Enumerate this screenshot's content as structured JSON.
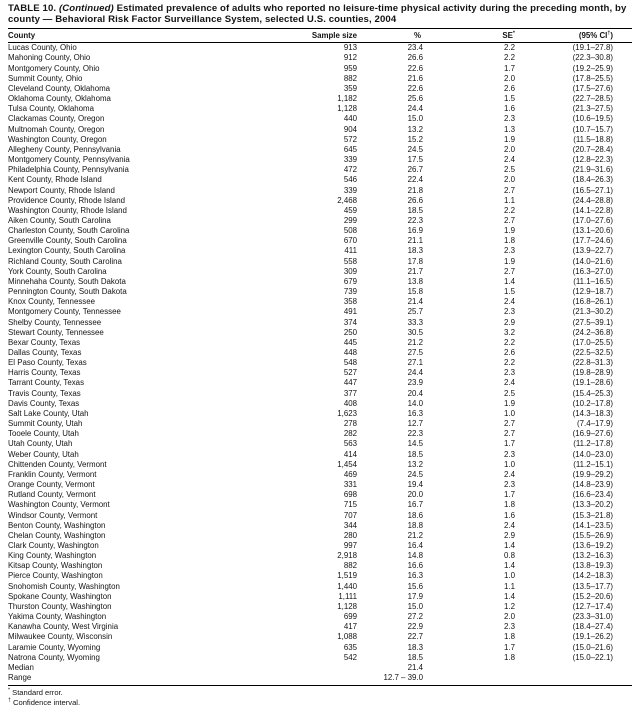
{
  "title": {
    "prefix": "TABLE 10. ",
    "continued": "(Continued)",
    "rest": " Estimated prevalence of adults who reported no leisure-time physical activity during the preceding month, by county — Behavioral Risk Factor Surveillance System, selected U.S. counties, 2004"
  },
  "table": {
    "headers": [
      {
        "key": "county",
        "label": "County"
      },
      {
        "key": "sample-size",
        "label": "Sample size"
      },
      {
        "key": "pct",
        "label": "%"
      },
      {
        "key": "se",
        "label": "SE",
        "sup": "*"
      },
      {
        "key": "ci",
        "label": "(95% CI",
        "sup": "†",
        "suffix": ")"
      }
    ],
    "rows": [
      [
        "Lucas County, Ohio",
        "913",
        "23.4",
        "2.2",
        "(19.1–27.8)"
      ],
      [
        "Mahoning County, Ohio",
        "912",
        "26.6",
        "2.2",
        "(22.3–30.8)"
      ],
      [
        "Montgomery County, Ohio",
        "959",
        "22.6",
        "1.7",
        "(19.2–25.9)"
      ],
      [
        "Summit County, Ohio",
        "882",
        "21.6",
        "2.0",
        "(17.8–25.5)"
      ],
      [
        "Cleveland County, Oklahoma",
        "359",
        "22.6",
        "2.6",
        "(17.5–27.6)"
      ],
      [
        "Oklahoma County, Oklahoma",
        "1,182",
        "25.6",
        "1.5",
        "(22.7–28.5)"
      ],
      [
        "Tulsa County, Oklahoma",
        "1,128",
        "24.4",
        "1.6",
        "(21.3–27.5)"
      ],
      [
        "Clackamas County, Oregon",
        "440",
        "15.0",
        "2.3",
        "(10.6–19.5)"
      ],
      [
        "Multnomah County, Oregon",
        "904",
        "13.2",
        "1.3",
        "(10.7–15.7)"
      ],
      [
        "Washington County, Oregon",
        "572",
        "15.2",
        "1.9",
        "(11.5–18.8)"
      ],
      [
        "Allegheny County, Pennsylvania",
        "645",
        "24.5",
        "2.0",
        "(20.7–28.4)"
      ],
      [
        "Montgomery County, Pennsylvania",
        "339",
        "17.5",
        "2.4",
        "(12.8–22.3)"
      ],
      [
        "Philadelphia County, Pennsylvania",
        "472",
        "26.7",
        "2.5",
        "(21.9–31.6)"
      ],
      [
        "Kent County, Rhode Island",
        "546",
        "22.4",
        "2.0",
        "(18.4–26.3)"
      ],
      [
        "Newport County, Rhode Island",
        "339",
        "21.8",
        "2.7",
        "(16.5–27.1)"
      ],
      [
        "Providence County, Rhode Island",
        "2,468",
        "26.6",
        "1.1",
        "(24.4–28.8)"
      ],
      [
        "Washington County, Rhode Island",
        "459",
        "18.5",
        "2.2",
        "(14.1–22.8)"
      ],
      [
        "Aiken County, South Carolina",
        "299",
        "22.3",
        "2.7",
        "(17.0–27.6)"
      ],
      [
        "Charleston County, South Carolina",
        "508",
        "16.9",
        "1.9",
        "(13.1–20.6)"
      ],
      [
        "Greenville County, South Carolina",
        "670",
        "21.1",
        "1.8",
        "(17.7–24.6)"
      ],
      [
        "Lexington County, South Carolina",
        "411",
        "18.3",
        "2.3",
        "(13.9–22.7)"
      ],
      [
        "Richland County, South Carolina",
        "558",
        "17.8",
        "1.9",
        "(14.0–21.6)"
      ],
      [
        "York County, South Carolina",
        "309",
        "21.7",
        "2.7",
        "(16.3–27.0)"
      ],
      [
        "Minnehaha County, South Dakota",
        "679",
        "13.8",
        "1.4",
        "(11.1–16.5)"
      ],
      [
        "Pennington County, South Dakota",
        "739",
        "15.8",
        "1.5",
        "(12.9–18.7)"
      ],
      [
        "Knox County, Tennessee",
        "358",
        "21.4",
        "2.4",
        "(16.8–26.1)"
      ],
      [
        "Montgomery County, Tennessee",
        "491",
        "25.7",
        "2.3",
        "(21.3–30.2)"
      ],
      [
        "Shelby County, Tennessee",
        "374",
        "33.3",
        "2.9",
        "(27.5–39.1)"
      ],
      [
        "Stewart County, Tennessee",
        "250",
        "30.5",
        "3.2",
        "(24.2–36.8)"
      ],
      [
        "Bexar County, Texas",
        "445",
        "21.2",
        "2.2",
        "(17.0–25.5)"
      ],
      [
        "Dallas County, Texas",
        "448",
        "27.5",
        "2.6",
        "(22.5–32.5)"
      ],
      [
        "El Paso County, Texas",
        "548",
        "27.1",
        "2.2",
        "(22.8–31.3)"
      ],
      [
        "Harris County, Texas",
        "527",
        "24.4",
        "2.3",
        "(19.8–28.9)"
      ],
      [
        "Tarrant County, Texas",
        "447",
        "23.9",
        "2.4",
        "(19.1–28.6)"
      ],
      [
        "Travis County, Texas",
        "377",
        "20.4",
        "2.5",
        "(15.4–25.3)"
      ],
      [
        "Davis County, Texas",
        "408",
        "14.0",
        "1.9",
        "(10.2–17.8)"
      ],
      [
        "Salt Lake County, Utah",
        "1,623",
        "16.3",
        "1.0",
        "(14.3–18.3)"
      ],
      [
        "Summit County, Utah",
        "278",
        "12.7",
        "2.7",
        "(7.4–17.9)"
      ],
      [
        "Tooele County, Utah",
        "282",
        "22.3",
        "2.7",
        "(16.9–27.6)"
      ],
      [
        "Utah County, Utah",
        "563",
        "14.5",
        "1.7",
        "(11.2–17.8)"
      ],
      [
        "Weber County, Utah",
        "414",
        "18.5",
        "2.3",
        "(14.0–23.0)"
      ],
      [
        "Chittenden County, Vermont",
        "1,454",
        "13.2",
        "1.0",
        "(11.2–15.1)"
      ],
      [
        "Franklin County, Vermont",
        "469",
        "24.5",
        "2.4",
        "(19.9–29.2)"
      ],
      [
        "Orange County, Vermont",
        "331",
        "19.4",
        "2.3",
        "(14.8–23.9)"
      ],
      [
        "Rutland County, Vermont",
        "698",
        "20.0",
        "1.7",
        "(16.6–23.4)"
      ],
      [
        "Washington County, Vermont",
        "715",
        "16.7",
        "1.8",
        "(13.3–20.2)"
      ],
      [
        "Windsor County, Vermont",
        "707",
        "18.6",
        "1.6",
        "(15.3–21.8)"
      ],
      [
        "Benton County, Washington",
        "344",
        "18.8",
        "2.4",
        "(14.1–23.5)"
      ],
      [
        "Chelan County, Washington",
        "280",
        "21.2",
        "2.9",
        "(15.5–26.9)"
      ],
      [
        "Clark County, Washington",
        "997",
        "16.4",
        "1.4",
        "(13.6–19.2)"
      ],
      [
        "King County, Washington",
        "2,918",
        "14.8",
        "0.8",
        "(13.2–16.3)"
      ],
      [
        "Kitsap County, Washington",
        "882",
        "16.6",
        "1.4",
        "(13.8–19.3)"
      ],
      [
        "Pierce County, Washington",
        "1,519",
        "16.3",
        "1.0",
        "(14.2–18.3)"
      ],
      [
        "Snohomish County, Washington",
        "1,440",
        "15.6",
        "1.1",
        "(13.5–17.7)"
      ],
      [
        "Spokane County, Washington",
        "1,111",
        "17.9",
        "1.4",
        "(15.2–20.6)"
      ],
      [
        "Thurston County, Washington",
        "1,128",
        "15.0",
        "1.2",
        "(12.7–17.4)"
      ],
      [
        "Yakima County, Washington",
        "699",
        "27.2",
        "2.0",
        "(23.3–31.0)"
      ],
      [
        "Kanawha County, West Virginia",
        "417",
        "22.9",
        "2.3",
        "(18.4–27.4)"
      ],
      [
        "Milwaukee County, Wisconsin",
        "1,088",
        "22.7",
        "1.8",
        "(19.1–26.2)"
      ],
      [
        "Laramie County, Wyoming",
        "635",
        "18.3",
        "1.7",
        "(15.0–21.6)"
      ],
      [
        "Natrona County, Wyoming",
        "542",
        "18.5",
        "1.8",
        "(15.0–22.1)"
      ]
    ],
    "summary_rows": [
      [
        "Median",
        "",
        "21.4",
        "",
        ""
      ],
      [
        "Range",
        "",
        "12.7 – 39.0",
        "",
        ""
      ]
    ]
  },
  "footnotes": [
    {
      "sup": "*",
      "text": "Standard error."
    },
    {
      "sup": "†",
      "text": "Confidence interval."
    }
  ]
}
